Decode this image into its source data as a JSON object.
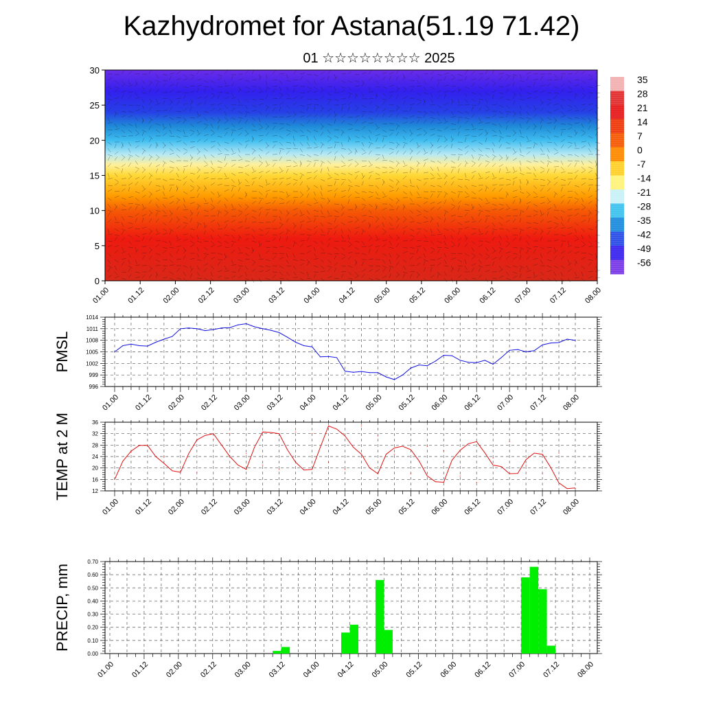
{
  "title": "Kazhydromet for Astana(51.19 71.42)",
  "subtitle": "01 ☆☆☆☆☆☆☆☆ 2025",
  "x_ticks": [
    "01.00",
    "01.12",
    "02.00",
    "02.12",
    "03.00",
    "03.12",
    "04.00",
    "04.12",
    "05.00",
    "05.12",
    "06.00",
    "06.12",
    "07.00",
    "07.12",
    "08.00"
  ],
  "chart_data": [
    {
      "type": "heatmap",
      "name": "vertical-section",
      "ylim": [
        0,
        30
      ],
      "y_ticks": [
        0,
        5,
        10,
        15,
        20,
        25,
        30
      ],
      "colorbar": {
        "labels": [
          "35",
          "28",
          "21",
          "14",
          "7",
          "0",
          "-7",
          "-14",
          "-21",
          "-28",
          "-35",
          "-42",
          "-49",
          "-56"
        ],
        "colors": [
          "#f2b0b0",
          "#e23030",
          "#e61c1c",
          "#ee3a0c",
          "#f55a05",
          "#ff8a00",
          "#ffcf2a",
          "#fff37a",
          "#c8f0f6",
          "#3fc2ee",
          "#1f8cdc",
          "#2c4ee8",
          "#3a25ef",
          "#7a3ae8"
        ]
      },
      "profile": [
        [
          0,
          "#d82818"
        ],
        [
          6,
          "#ee1a10"
        ],
        [
          10,
          "#f55a05"
        ],
        [
          12,
          "#ff9a00"
        ],
        [
          15,
          "#ffd836"
        ],
        [
          16.5,
          "#fff09a"
        ],
        [
          18,
          "#b7e9f4"
        ],
        [
          20,
          "#3fbdf0"
        ],
        [
          22,
          "#1f8ad8"
        ],
        [
          24,
          "#2640e6"
        ],
        [
          27,
          "#3320ee"
        ],
        [
          30,
          "#6a2ce8"
        ]
      ]
    },
    {
      "type": "line",
      "name": "pmsl",
      "ylabel": "PMSL",
      "ylim": [
        996,
        1014
      ],
      "y_ticks": [
        996,
        999,
        1002,
        1005,
        1008,
        1011,
        1014
      ],
      "color": "#1010e0",
      "x": [
        0,
        3,
        6,
        9,
        12,
        15,
        18,
        21,
        24,
        27,
        30,
        33,
        36,
        39,
        42,
        45,
        48,
        51,
        54,
        57,
        60,
        63,
        66,
        69,
        72,
        75,
        78,
        81,
        84,
        87,
        90,
        93,
        96,
        99,
        102,
        105,
        108,
        111,
        114,
        117,
        120,
        123,
        126,
        129,
        132,
        135,
        138,
        141,
        144,
        147,
        150,
        153,
        156,
        159,
        162,
        165,
        168
      ],
      "values": [
        1005,
        1006.6,
        1007,
        1006.6,
        1006.5,
        1007.5,
        1008.3,
        1009,
        1011,
        1011.2,
        1011,
        1010.5,
        1010.8,
        1011.2,
        1011.3,
        1012,
        1012.3,
        1011.5,
        1011,
        1010.6,
        1010,
        1008.8,
        1007.5,
        1006.6,
        1006.3,
        1003.7,
        1003.8,
        1003.5,
        1000,
        999.7,
        999.9,
        999.6,
        999.6,
        998.5,
        997.8,
        999,
        1000.8,
        1001.6,
        1001.4,
        1002.6,
        1004.1,
        1004,
        1002.8,
        1002.3,
        1002.2,
        1002.8,
        1001.8,
        1003.5,
        1005.4,
        1005.6,
        1005,
        1005.3,
        1006.8,
        1007.3,
        1007.4,
        1008.3,
        1008
      ]
    },
    {
      "type": "line",
      "name": "temp2m",
      "ylabel": "TEMP at 2 M",
      "ylim": [
        12,
        36
      ],
      "y_ticks": [
        12,
        16,
        20,
        24,
        28,
        32,
        36
      ],
      "color": "#e01010",
      "x": [
        0,
        6,
        12,
        18,
        24,
        30,
        36,
        42,
        48,
        54,
        60,
        66,
        72,
        78,
        84,
        90,
        96,
        102,
        108,
        114,
        120,
        126,
        132,
        138,
        144,
        150,
        156,
        162,
        168
      ],
      "values": [
        16,
        25.5,
        28,
        24,
        19,
        18.5,
        30,
        32,
        25,
        21,
        19.5,
        32.6,
        32,
        22,
        19.5,
        34.7,
        31.2,
        24.8,
        18,
        27.6,
        26,
        17.2,
        15,
        23.5,
        29.2,
        21,
        18,
        25.2,
        12.8
      ],
      "x_fine": [
        0,
        3,
        6,
        9,
        12,
        15,
        18,
        21,
        24,
        27,
        30,
        33,
        36,
        39,
        42,
        45,
        48,
        51,
        54,
        57,
        60,
        63,
        66,
        69,
        72,
        75,
        78,
        81,
        84,
        87,
        90,
        93,
        96,
        99,
        102,
        105,
        108,
        111,
        114,
        117,
        120,
        123,
        126,
        129,
        132,
        135,
        138,
        141,
        144,
        147,
        150,
        153,
        156,
        159,
        162,
        165,
        168
      ],
      "values_fine": [
        16,
        22.4,
        25.9,
        27.9,
        27.9,
        24,
        21.6,
        19,
        18.5,
        25,
        29.8,
        31.4,
        32,
        28,
        24,
        21,
        19.5,
        27.3,
        32.6,
        32.4,
        32,
        26.4,
        22,
        19.3,
        19.5,
        27.3,
        34.7,
        33.6,
        31.2,
        27.3,
        24.8,
        20,
        18,
        24.8,
        27,
        27.6,
        26.4,
        22.5,
        17.2,
        15.2,
        15,
        22.7,
        26.2,
        28.5,
        29.2,
        25.3,
        21,
        20.5,
        18,
        18.1,
        22.9,
        25.2,
        24.8,
        20.2,
        14.8,
        12.8,
        13
      ]
    },
    {
      "type": "bar",
      "name": "precip",
      "ylabel": "PRECIP, mm",
      "ylim": [
        0,
        0.7
      ],
      "y_ticks": [
        "0.00",
        "0.10",
        "0.20",
        "0.30",
        "0.40",
        "0.50",
        "0.60",
        "0.70"
      ],
      "color": "#00ee00",
      "bar_width_hours": 3,
      "x": [
        57,
        60,
        81,
        84,
        93,
        96,
        144,
        147,
        150,
        153
      ],
      "values": [
        0.02,
        0.05,
        0.16,
        0.22,
        0.56,
        0.18,
        0.58,
        0.66,
        0.49,
        0.06
      ]
    }
  ]
}
